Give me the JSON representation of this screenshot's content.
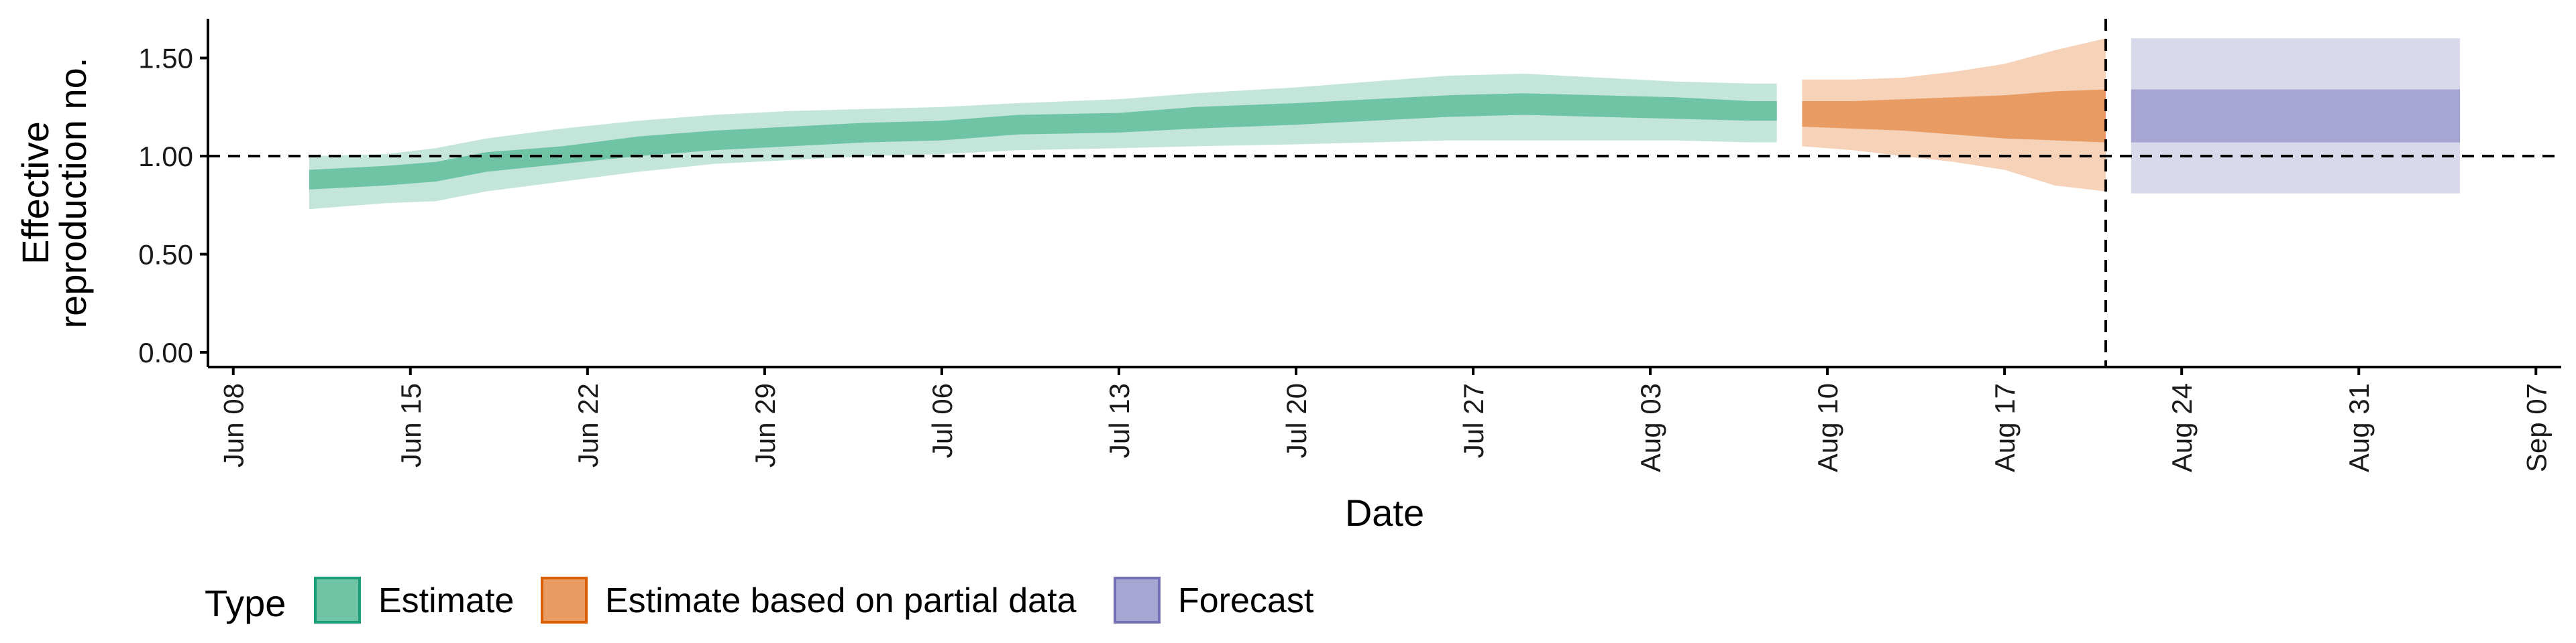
{
  "chart_data": {
    "type": "area",
    "xlabel": "Date",
    "ylabel": [
      "Effective",
      "reproduction no."
    ],
    "ylim": [
      0,
      1.7
    ],
    "xlim": [
      "2020-06-07",
      "2020-09-08"
    ],
    "y_ticks": [
      0,
      0.5,
      1,
      1.5
    ],
    "y_tick_labels": [
      "0.00",
      "0.50",
      "1.00",
      "1.50"
    ],
    "x_ticks": [
      "2020-06-08",
      "2020-06-15",
      "2020-06-22",
      "2020-06-29",
      "2020-07-06",
      "2020-07-13",
      "2020-07-20",
      "2020-07-27",
      "2020-08-03",
      "2020-08-10",
      "2020-08-17",
      "2020-08-24",
      "2020-08-31",
      "2020-09-07"
    ],
    "x_tick_labels": [
      "Jun 08",
      "Jun 15",
      "Jun 22",
      "Jun 29",
      "Jul 06",
      "Jul 13",
      "Jul 20",
      "Jul 27",
      "Aug 03",
      "Aug 10",
      "Aug 17",
      "Aug 24",
      "Aug 31",
      "Sep 07"
    ],
    "reference_line": {
      "y": 1.0,
      "style": "dashed"
    },
    "vertical_line": {
      "x": "2020-08-21",
      "style": "dashed"
    },
    "grid": false,
    "legend_position": "bottom-left",
    "legend_title": "Type",
    "series": [
      {
        "name": "Estimate",
        "color": "#66c2a5",
        "fill_outer": "#c4e6da",
        "fill_inner": "#70c4a6",
        "dates": [
          "2020-06-11",
          "2020-06-14",
          "2020-06-16",
          "2020-06-18",
          "2020-06-21",
          "2020-06-24",
          "2020-06-27",
          "2020-06-30",
          "2020-07-03",
          "2020-07-06",
          "2020-07-09",
          "2020-07-13",
          "2020-07-16",
          "2020-07-20",
          "2020-07-23",
          "2020-07-26",
          "2020-07-29",
          "2020-08-01",
          "2020-08-04",
          "2020-08-07",
          "2020-08-08"
        ],
        "median": [
          0.88,
          0.9,
          0.92,
          0.97,
          1.0,
          1.05,
          1.08,
          1.1,
          1.12,
          1.13,
          1.16,
          1.17,
          1.19,
          1.21,
          1.23,
          1.25,
          1.26,
          1.25,
          1.24,
          1.23,
          1.23
        ],
        "lower_90": [
          0.73,
          0.76,
          0.77,
          0.82,
          0.87,
          0.92,
          0.96,
          0.98,
          1.0,
          1.01,
          1.03,
          1.04,
          1.05,
          1.06,
          1.07,
          1.08,
          1.08,
          1.08,
          1.08,
          1.07,
          1.07
        ],
        "upper_90": [
          1.0,
          1.01,
          1.04,
          1.09,
          1.14,
          1.18,
          1.21,
          1.23,
          1.24,
          1.25,
          1.27,
          1.29,
          1.32,
          1.35,
          1.38,
          1.41,
          1.42,
          1.4,
          1.38,
          1.37,
          1.37
        ],
        "lower_50": [
          0.83,
          0.85,
          0.87,
          0.92,
          0.96,
          1.0,
          1.03,
          1.05,
          1.07,
          1.08,
          1.11,
          1.12,
          1.14,
          1.16,
          1.18,
          1.2,
          1.21,
          1.2,
          1.19,
          1.18,
          1.18
        ],
        "upper_50": [
          0.93,
          0.95,
          0.97,
          1.02,
          1.05,
          1.1,
          1.13,
          1.15,
          1.17,
          1.18,
          1.21,
          1.22,
          1.25,
          1.27,
          1.29,
          1.31,
          1.32,
          1.31,
          1.3,
          1.28,
          1.28
        ]
      },
      {
        "name": "Estimate based on partial data",
        "color": "#fc8d62",
        "fill_outer": "#f6d2b8",
        "fill_inner": "#e89b63",
        "dates": [
          "2020-08-09",
          "2020-08-11",
          "2020-08-13",
          "2020-08-15",
          "2020-08-17",
          "2020-08-19",
          "2020-08-21"
        ],
        "median": [
          1.21,
          1.21,
          1.22,
          1.2,
          1.2,
          1.21,
          1.21
        ],
        "lower_90": [
          1.05,
          1.03,
          1.0,
          0.97,
          0.93,
          0.85,
          0.82
        ],
        "upper_90": [
          1.39,
          1.39,
          1.4,
          1.43,
          1.47,
          1.54,
          1.6
        ],
        "lower_50": [
          1.15,
          1.14,
          1.13,
          1.11,
          1.09,
          1.08,
          1.07
        ],
        "upper_50": [
          1.28,
          1.28,
          1.29,
          1.3,
          1.31,
          1.33,
          1.34
        ]
      },
      {
        "name": "Forecast",
        "color": "#8da0cb",
        "fill_outer": "#d9d9ec",
        "fill_inner": "#a7a6d2",
        "dates": [
          "2020-08-22",
          "2020-09-04"
        ],
        "median": [
          1.21,
          1.21
        ],
        "lower_90": [
          0.81,
          0.81
        ],
        "upper_90": [
          1.6,
          1.6
        ],
        "lower_50": [
          1.07,
          1.07
        ],
        "upper_50": [
          1.34,
          1.34
        ]
      }
    ],
    "legend_entries": [
      {
        "label": "Estimate",
        "fill": "#70c4a6",
        "stroke": "#1b9e77"
      },
      {
        "label": "Estimate based on partial data",
        "fill": "#e89b63",
        "stroke": "#d95f02"
      },
      {
        "label": "Forecast",
        "fill": "#a7a6d2",
        "stroke": "#7570b3"
      }
    ]
  }
}
